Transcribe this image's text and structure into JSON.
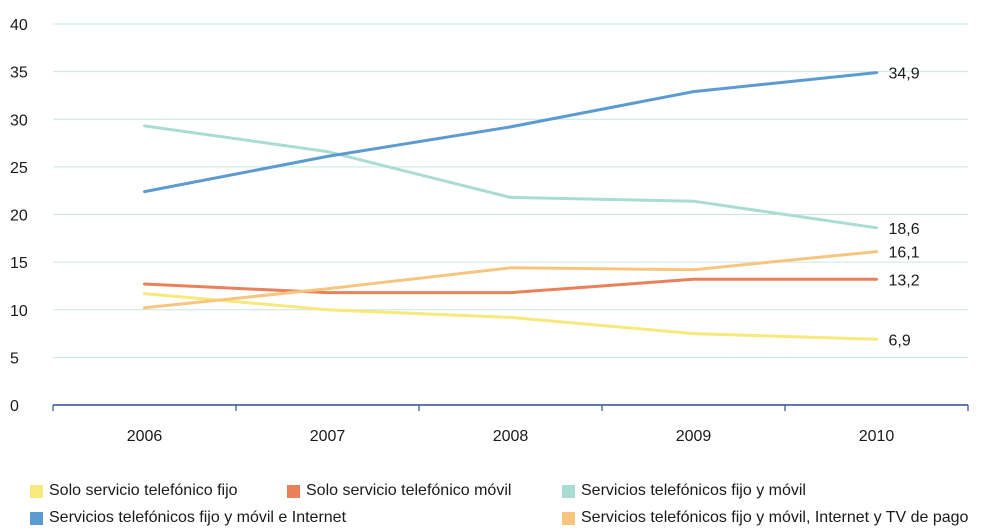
{
  "chart_data": {
    "type": "line",
    "title": "",
    "xlabel": "",
    "ylabel": "",
    "categories": [
      "2006",
      "2007",
      "2008",
      "2009",
      "2010"
    ],
    "ylim": [
      0,
      40
    ],
    "yticks": [
      "0",
      "5",
      "10",
      "15",
      "20",
      "25",
      "30",
      "35",
      "40"
    ],
    "grid": true,
    "legend_position": "bottom",
    "series": [
      {
        "name": "Solo servicio telefónico fijo",
        "color": "#f7e97a",
        "values": [
          11.7,
          10.0,
          9.2,
          7.5,
          6.9
        ],
        "end_label": "6,9"
      },
      {
        "name": "Solo servicio telefónico móvil",
        "color": "#e9805a",
        "values": [
          12.7,
          11.8,
          11.8,
          13.2,
          13.2
        ],
        "end_label": "13,2"
      },
      {
        "name": "Servicios telefónicos fijo y móvil",
        "color": "#a9dcd2",
        "values": [
          29.3,
          26.6,
          21.8,
          21.4,
          18.6
        ],
        "end_label": "18,6"
      },
      {
        "name": "Servicios telefónicos fijo y móvil e Internet",
        "color": "#5b9bd1",
        "values": [
          22.4,
          26.1,
          29.2,
          32.9,
          34.9
        ],
        "end_label": "34,9"
      },
      {
        "name": "Servicios telefónicos fijo y móvil, Internet y TV de pago",
        "color": "#f8c57e",
        "values": [
          10.2,
          12.2,
          14.4,
          14.2,
          16.1
        ],
        "end_label": "16,1"
      }
    ]
  }
}
